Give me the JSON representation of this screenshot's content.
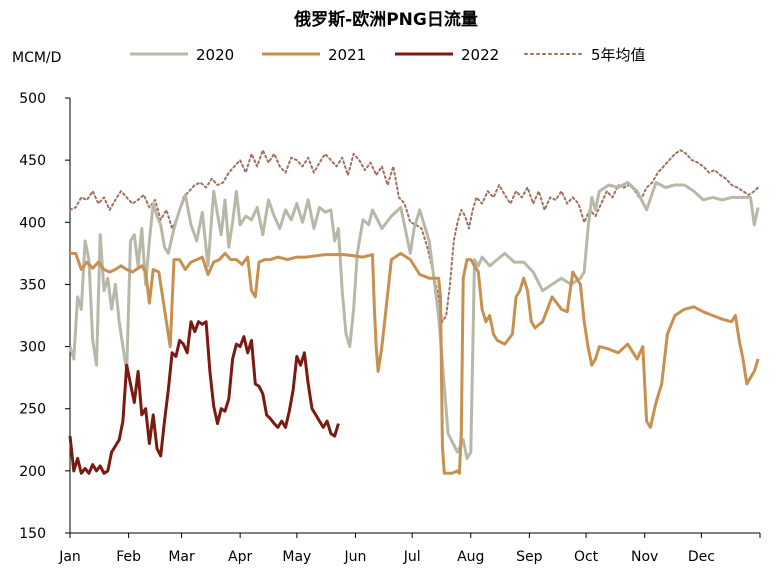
{
  "chart_data": {
    "type": "line",
    "title": "俄罗斯-欧洲PNG日流量",
    "ylabel": "MCM/D",
    "ylim": [
      150,
      500
    ],
    "yticks": [
      150,
      200,
      250,
      300,
      350,
      400,
      450,
      500
    ],
    "xlim": [
      0,
      365
    ],
    "xtick_labels": [
      "Jan",
      "Feb",
      "Mar",
      "Apr",
      "May",
      "Jun",
      "Jul",
      "Aug",
      "Sep",
      "Oct",
      "Nov",
      "Dec"
    ],
    "xtick_days": [
      0,
      31,
      59,
      90,
      120,
      151,
      181,
      212,
      243,
      273,
      304,
      334
    ],
    "grid": false,
    "legend_position": "top",
    "series": [
      {
        "name": "2020",
        "color": "#b8b8a8",
        "style": "solid",
        "x": [
          0,
          2,
          4,
          6,
          8,
          10,
          12,
          14,
          16,
          18,
          20,
          22,
          24,
          26,
          28,
          30,
          32,
          34,
          36,
          38,
          40,
          42,
          44,
          46,
          48,
          50,
          52,
          55,
          58,
          61,
          64,
          67,
          70,
          73,
          76,
          79,
          80,
          82,
          84,
          86,
          88,
          90,
          93,
          96,
          99,
          102,
          105,
          108,
          111,
          114,
          117,
          120,
          123,
          126,
          129,
          132,
          135,
          138,
          140,
          142,
          144,
          146,
          148,
          150,
          152,
          155,
          158,
          160,
          165,
          170,
          175,
          180,
          182,
          185,
          190,
          195,
          200,
          205,
          208,
          210,
          212,
          214,
          216,
          218,
          222,
          226,
          230,
          235,
          240,
          245,
          250,
          255,
          260,
          265,
          270,
          272,
          274,
          276,
          278,
          280,
          285,
          290,
          295,
          300,
          305,
          310,
          315,
          320,
          325,
          330,
          335,
          340,
          345,
          350,
          355,
          360,
          362,
          364
        ],
        "values": [
          300,
          290,
          340,
          330,
          385,
          370,
          305,
          285,
          390,
          345,
          355,
          330,
          350,
          320,
          300,
          280,
          385,
          390,
          365,
          395,
          350,
          385,
          415,
          405,
          398,
          380,
          375,
          395,
          410,
          422,
          398,
          385,
          408,
          365,
          425,
          398,
          390,
          418,
          380,
          400,
          425,
          398,
          405,
          402,
          412,
          390,
          418,
          405,
          395,
          410,
          402,
          415,
          400,
          418,
          395,
          412,
          408,
          410,
          385,
          395,
          345,
          310,
          300,
          330,
          375,
          402,
          398,
          410,
          395,
          405,
          412,
          375,
          395,
          410,
          385,
          325,
          230,
          215,
          225,
          210,
          215,
          370,
          365,
          372,
          365,
          370,
          375,
          368,
          368,
          360,
          345,
          350,
          355,
          350,
          355,
          360,
          395,
          420,
          410,
          425,
          430,
          428,
          432,
          425,
          410,
          432,
          428,
          430,
          430,
          425,
          418,
          420,
          418,
          420,
          420,
          420,
          398,
          412
        ]
      },
      {
        "name": "2021",
        "color": "#c8904e",
        "style": "solid",
        "x": [
          0,
          3,
          6,
          9,
          12,
          15,
          18,
          21,
          24,
          27,
          30,
          33,
          36,
          38,
          40,
          42,
          44,
          47,
          50,
          53,
          55,
          58,
          61,
          64,
          67,
          70,
          73,
          76,
          79,
          82,
          85,
          88,
          91,
          94,
          96,
          98,
          100,
          103,
          106,
          110,
          115,
          120,
          125,
          130,
          135,
          140,
          145,
          150,
          155,
          160,
          161,
          162,
          163,
          165,
          170,
          175,
          180,
          185,
          190,
          195,
          196,
          197,
          198,
          200,
          202,
          205,
          206,
          207,
          208,
          210,
          212,
          214,
          216,
          218,
          220,
          222,
          224,
          226,
          230,
          234,
          236,
          238,
          240,
          242,
          244,
          246,
          250,
          255,
          260,
          263,
          266,
          270,
          272,
          274,
          276,
          278,
          280,
          285,
          290,
          295,
          300,
          303,
          305,
          307,
          310,
          313,
          316,
          320,
          325,
          330,
          335,
          340,
          345,
          350,
          352,
          354,
          356,
          358,
          360,
          362,
          364
        ],
        "values": [
          375,
          375,
          362,
          368,
          363,
          368,
          362,
          360,
          362,
          365,
          362,
          360,
          363,
          365,
          360,
          335,
          362,
          360,
          330,
          300,
          370,
          370,
          362,
          368,
          370,
          372,
          358,
          368,
          370,
          375,
          370,
          370,
          366,
          372,
          345,
          340,
          368,
          370,
          370,
          372,
          370,
          372,
          372,
          373,
          374,
          374,
          374,
          373,
          372,
          374,
          330,
          300,
          280,
          300,
          370,
          375,
          370,
          358,
          355,
          355,
          340,
          220,
          198,
          198,
          198,
          200,
          198,
          230,
          355,
          370,
          370,
          365,
          360,
          330,
          320,
          325,
          310,
          305,
          302,
          310,
          340,
          345,
          355,
          345,
          320,
          315,
          320,
          340,
          330,
          328,
          360,
          350,
          320,
          300,
          285,
          290,
          300,
          298,
          295,
          302,
          290,
          300,
          240,
          235,
          255,
          270,
          310,
          325,
          330,
          332,
          328,
          325,
          322,
          320,
          325,
          305,
          290,
          270,
          275,
          280,
          290
        ]
      },
      {
        "name": "2022",
        "color": "#7b1a12",
        "style": "solid",
        "x": [
          0,
          2,
          4,
          6,
          8,
          10,
          12,
          14,
          16,
          18,
          20,
          22,
          24,
          26,
          28,
          30,
          32,
          34,
          36,
          38,
          40,
          42,
          44,
          46,
          48,
          50,
          52,
          54,
          56,
          58,
          60,
          62,
          64,
          66,
          68,
          70,
          72,
          74,
          76,
          78,
          80,
          82,
          84,
          86,
          88,
          90,
          92,
          94,
          96,
          98,
          100,
          102,
          104,
          106,
          108,
          110,
          112,
          114,
          116,
          118,
          120,
          122,
          124,
          126,
          128,
          130,
          132,
          134,
          136,
          138,
          140,
          142
        ],
        "values": [
          228,
          200,
          210,
          198,
          202,
          198,
          205,
          200,
          204,
          198,
          200,
          215,
          220,
          225,
          240,
          285,
          270,
          255,
          280,
          245,
          250,
          222,
          245,
          218,
          212,
          240,
          265,
          295,
          292,
          305,
          302,
          295,
          320,
          312,
          320,
          318,
          320,
          280,
          252,
          238,
          250,
          248,
          258,
          290,
          302,
          300,
          308,
          295,
          305,
          270,
          268,
          262,
          245,
          242,
          238,
          235,
          240,
          235,
          248,
          265,
          292,
          285,
          295,
          270,
          250,
          245,
          240,
          235,
          240,
          230,
          228,
          238
        ]
      },
      {
        "name": "5年均值",
        "color": "#a07060",
        "style": "dotted",
        "x": [
          0,
          3,
          6,
          9,
          12,
          15,
          18,
          21,
          24,
          27,
          30,
          33,
          36,
          39,
          42,
          45,
          48,
          51,
          54,
          57,
          60,
          63,
          66,
          69,
          72,
          75,
          78,
          81,
          84,
          87,
          90,
          93,
          96,
          99,
          102,
          105,
          108,
          111,
          114,
          117,
          120,
          123,
          126,
          129,
          132,
          135,
          138,
          141,
          144,
          147,
          150,
          153,
          156,
          159,
          162,
          165,
          168,
          171,
          174,
          177,
          180,
          183,
          186,
          189,
          192,
          195,
          197,
          199,
          201,
          203,
          205,
          207,
          209,
          211,
          213,
          215,
          218,
          221,
          224,
          227,
          230,
          233,
          236,
          239,
          242,
          245,
          248,
          251,
          254,
          257,
          260,
          263,
          266,
          269,
          272,
          275,
          278,
          281,
          284,
          287,
          290,
          293,
          296,
          299,
          302,
          305,
          308,
          311,
          314,
          317,
          320,
          323,
          326,
          329,
          332,
          335,
          338,
          341,
          344,
          347,
          350,
          353,
          356,
          359,
          362,
          364
        ],
        "values": [
          410,
          412,
          420,
          418,
          425,
          415,
          420,
          410,
          418,
          425,
          420,
          415,
          418,
          422,
          412,
          418,
          402,
          410,
          395,
          405,
          420,
          425,
          430,
          432,
          428,
          435,
          430,
          432,
          440,
          445,
          450,
          440,
          455,
          445,
          458,
          448,
          455,
          445,
          440,
          452,
          450,
          445,
          452,
          440,
          448,
          455,
          450,
          445,
          452,
          438,
          455,
          450,
          442,
          448,
          438,
          445,
          430,
          445,
          420,
          415,
          400,
          398,
          395,
          380,
          360,
          340,
          320,
          325,
          350,
          385,
          400,
          410,
          405,
          395,
          410,
          420,
          415,
          425,
          420,
          430,
          422,
          415,
          425,
          420,
          428,
          415,
          425,
          410,
          420,
          418,
          425,
          415,
          420,
          415,
          400,
          410,
          405,
          415,
          425,
          420,
          430,
          428,
          430,
          425,
          418,
          428,
          432,
          440,
          445,
          450,
          455,
          458,
          455,
          450,
          448,
          445,
          440,
          442,
          438,
          435,
          430,
          428,
          425,
          422,
          425,
          428
        ]
      }
    ]
  }
}
